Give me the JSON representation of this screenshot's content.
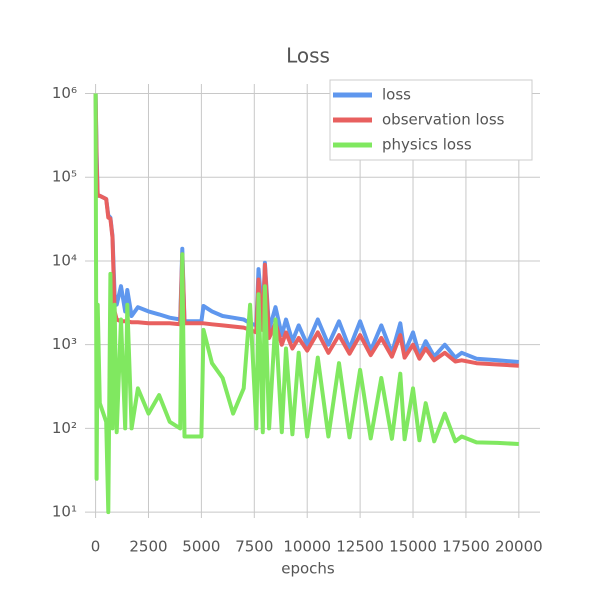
{
  "chart_data": {
    "type": "line",
    "title": "Loss",
    "x_label": "epochs",
    "x": [
      0,
      50,
      100,
      200,
      500,
      600,
      700,
      800,
      900,
      1000,
      1200,
      1400,
      1500,
      1700,
      2000,
      2500,
      3000,
      3500,
      4000,
      4100,
      4200,
      4500,
      5000,
      5100,
      5500,
      6000,
      6500,
      7000,
      7300,
      7600,
      7700,
      7900,
      8000,
      8200,
      8500,
      8800,
      9000,
      9300,
      9600,
      10000,
      10500,
      11000,
      11500,
      12000,
      12500,
      13000,
      13500,
      14000,
      14400,
      14600,
      15000,
      15300,
      15600,
      16000,
      16500,
      17000,
      17300,
      18000,
      19000,
      20000
    ],
    "series": [
      {
        "name": "loss",
        "color": "#5f97ee",
        "values": [
          1000000,
          200000,
          60000,
          60000,
          55000,
          35000,
          33000,
          20000,
          4000,
          3000,
          5000,
          2500,
          4500,
          2200,
          2800,
          2500,
          2300,
          2100,
          2000,
          14000,
          1900,
          1900,
          1900,
          2900,
          2500,
          2200,
          2100,
          2000,
          1800,
          1700,
          8000,
          2000,
          9500,
          1500,
          2800,
          1300,
          2000,
          1100,
          1700,
          1000,
          2000,
          1000,
          1900,
          900,
          1900,
          850,
          1700,
          800,
          1800,
          800,
          1400,
          750,
          1100,
          720,
          1000,
          700,
          800,
          680,
          650,
          620
        ]
      },
      {
        "name": "observation loss",
        "color": "#e8605f",
        "values": [
          1000000,
          150000,
          60000,
          60000,
          55000,
          33000,
          32000,
          19000,
          2500,
          2000,
          1900,
          1900,
          1900,
          1850,
          1850,
          1800,
          1800,
          1800,
          1750,
          12000,
          1800,
          1800,
          1800,
          1800,
          1750,
          1700,
          1650,
          1600,
          1500,
          1400,
          6000,
          1500,
          9000,
          1200,
          1800,
          1000,
          1400,
          900,
          1200,
          850,
          1400,
          800,
          1300,
          780,
          1300,
          750,
          1200,
          720,
          1300,
          700,
          1000,
          680,
          900,
          650,
          800,
          630,
          650,
          600,
          580,
          560
        ]
      },
      {
        "name": "physics loss",
        "color": "#80e860",
        "values": [
          1000000,
          25,
          3000,
          200,
          120,
          10,
          7000,
          100,
          3000,
          90,
          2000,
          100,
          3000,
          100,
          300,
          150,
          250,
          120,
          100,
          12000,
          80,
          80,
          80,
          1500,
          600,
          400,
          150,
          300,
          3000,
          100,
          4000,
          90,
          5000,
          100,
          2000,
          90,
          900,
          85,
          800,
          80,
          700,
          80,
          600,
          78,
          500,
          76,
          400,
          75,
          450,
          74,
          300,
          72,
          200,
          70,
          150,
          70,
          80,
          68,
          67,
          65
        ]
      }
    ],
    "xlim": [
      -500,
      21000
    ],
    "xticks": [
      0,
      2500,
      5000,
      7500,
      10000,
      12500,
      15000,
      17500,
      20000
    ],
    "ylim": [
      8.5,
      1300000
    ],
    "log_y": true,
    "yticks": [
      {
        "value": 10,
        "label": "10¹"
      },
      {
        "value": 100,
        "label": "10²"
      },
      {
        "value": 1000,
        "label": "10³"
      },
      {
        "value": 10000,
        "label": "10⁴"
      },
      {
        "value": 100000,
        "label": "10⁵"
      },
      {
        "value": 1000000,
        "label": "10⁶"
      }
    ],
    "grid": true,
    "legend": "upper right"
  }
}
